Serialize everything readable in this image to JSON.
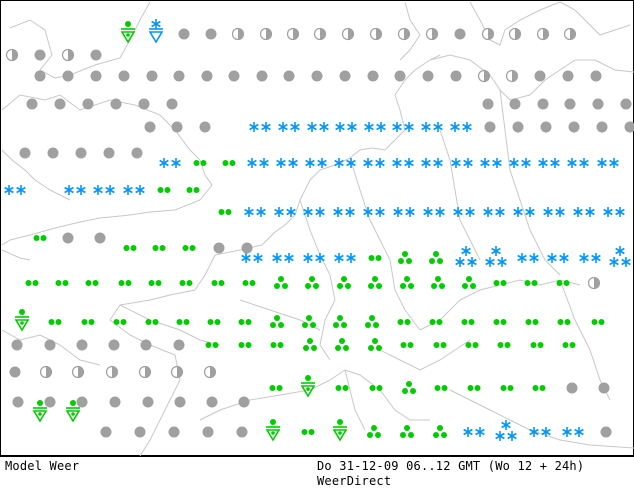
{
  "map": {
    "colors": {
      "coastline": "#c8c8c8",
      "border": "#c8c8c8",
      "rain": "#00cc00",
      "snow": "#0096ff",
      "cloud": "#a0a0a0",
      "frame": "#000000",
      "background": "#ffffff"
    },
    "rows": [
      "                                        ",
      "                                        ",
      "                                        ",
      "                                        ",
      "                                        ",
      "                                        ",
      "                                        ",
      "                                        ",
      "                                        ",
      "                                        ",
      "                                        ",
      "                                        ",
      "                                        ",
      "                                        "
    ],
    "legend": "symbols: cloud=grey disc, half=half-cloudy disc, rain=green dots, shower=green triangle with dot, snow=blue asterisks"
  },
  "footer": {
    "model": "Model Weer",
    "date": "Do 31-12-09 06..12 GMT (Wo 12 + 24h)",
    "brand": "WeerDirect"
  }
}
